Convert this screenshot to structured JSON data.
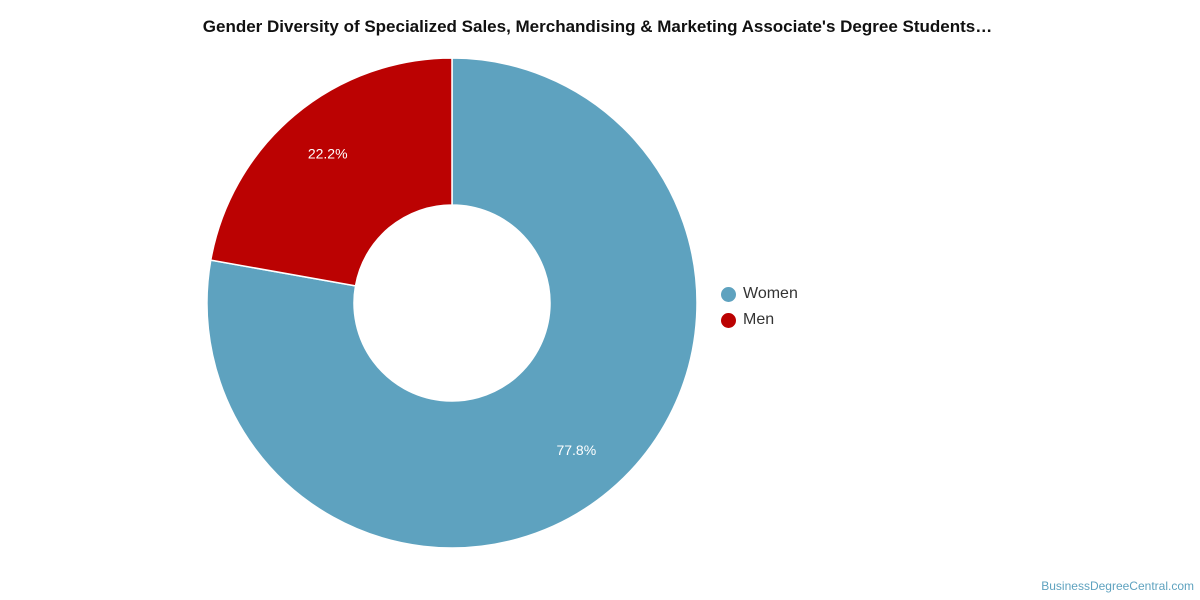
{
  "chart_data": {
    "type": "pie",
    "style": "donut",
    "title": "Gender Diversity of Specialized Sales, Merchandising & Marketing Associate's Degree Students…",
    "slices": [
      {
        "name": "Women",
        "value": 77.8,
        "label": "77.8%",
        "color": "#5ea2bf"
      },
      {
        "name": "Men",
        "value": 22.2,
        "label": "22.2%",
        "color": "#bb0202"
      }
    ],
    "legend_position": "right"
  },
  "legend": {
    "items": [
      {
        "label": "Women",
        "color": "#5ea2bf"
      },
      {
        "label": "Men",
        "color": "#bb0202"
      }
    ]
  },
  "watermark": "BusinessDegreeCentral.com"
}
